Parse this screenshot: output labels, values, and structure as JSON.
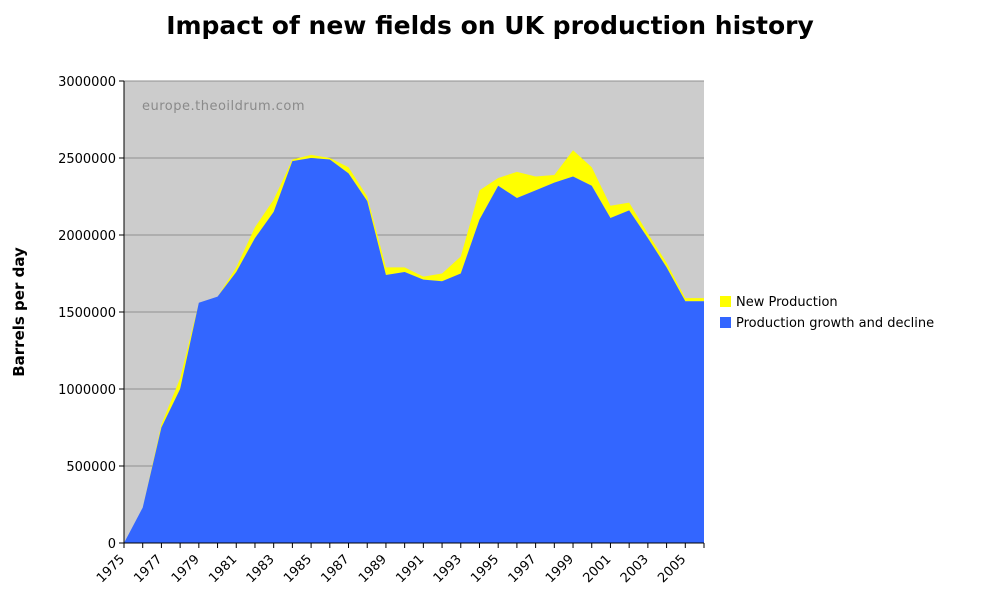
{
  "chart_data": {
    "type": "area",
    "stacked": true,
    "title": "Impact of new fields on UK production history",
    "watermark": "europe.theoildrum.com",
    "xlabel": "",
    "ylabel": "Barrels per day",
    "ylim": [
      0,
      3000000
    ],
    "yticks": [
      0,
      500000,
      1000000,
      1500000,
      2000000,
      2500000,
      3000000
    ],
    "yticklabels": [
      "0",
      "500000",
      "1000000",
      "1500000",
      "2000000",
      "2500000",
      "3000000"
    ],
    "xticklabels": [
      "1975",
      "1977",
      "1979",
      "1981",
      "1983",
      "1985",
      "1987",
      "1989",
      "1991",
      "1993",
      "1995",
      "1997",
      "1999",
      "2001",
      "2003",
      "2005"
    ],
    "x": [
      1975,
      1976,
      1977,
      1978,
      1979,
      1980,
      1981,
      1982,
      1983,
      1984,
      1985,
      1986,
      1987,
      1988,
      1989,
      1990,
      1991,
      1992,
      1993,
      1994,
      1995,
      1996,
      1997,
      1998,
      1999,
      2000,
      2001,
      2002,
      2003,
      2004,
      2005,
      2006
    ],
    "grid": "horizontal",
    "legend_position": "right",
    "plot_background": "#cccccc",
    "series": [
      {
        "name": "Production growth and decline",
        "color": "#3366ff",
        "values": [
          0,
          230000,
          750000,
          1000000,
          1560000,
          1600000,
          1760000,
          1980000,
          2150000,
          2480000,
          2500000,
          2490000,
          2400000,
          2220000,
          1740000,
          1760000,
          1710000,
          1700000,
          1750000,
          2100000,
          2320000,
          2240000,
          2290000,
          2340000,
          2380000,
          2320000,
          2110000,
          2160000,
          1980000,
          1790000,
          1570000,
          1570000
        ]
      },
      {
        "name": "New Production",
        "color": "#ffff00",
        "values": [
          0,
          0,
          20000,
          70000,
          0,
          0,
          30000,
          70000,
          80000,
          10000,
          20000,
          10000,
          40000,
          30000,
          50000,
          30000,
          20000,
          50000,
          110000,
          190000,
          50000,
          170000,
          90000,
          50000,
          170000,
          120000,
          80000,
          50000,
          30000,
          30000,
          20000,
          20000
        ]
      }
    ],
    "legend": [
      "New Production",
      "Production growth and decline"
    ]
  }
}
